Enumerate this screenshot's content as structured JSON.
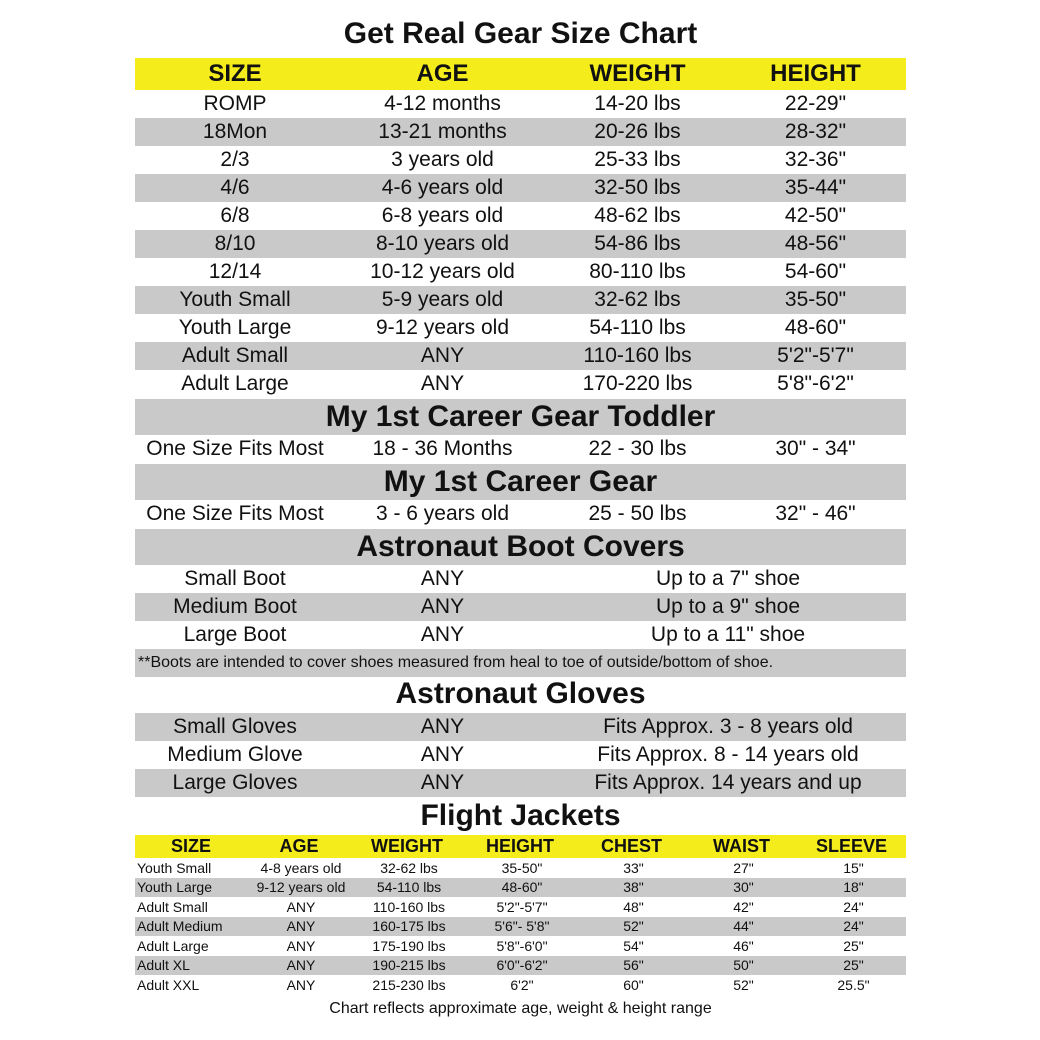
{
  "title": "Get Real Gear Size Chart",
  "colors": {
    "header_yellow": "#f5ec1b",
    "row_gray": "#c9c9c9"
  },
  "main": {
    "headers": [
      "SIZE",
      "AGE",
      "WEIGHT",
      "HEIGHT"
    ],
    "rows": [
      [
        "ROMP",
        "4-12 months",
        "14-20 lbs",
        "22-29\""
      ],
      [
        "18Mon",
        "13-21 months",
        "20-26 lbs",
        "28-32\""
      ],
      [
        "2/3",
        "3 years old",
        "25-33 lbs",
        "32-36\""
      ],
      [
        "4/6",
        "4-6 years old",
        "32-50 lbs",
        "35-44\""
      ],
      [
        "6/8",
        "6-8 years old",
        "48-62 lbs",
        "42-50\""
      ],
      [
        "8/10",
        "8-10 years old",
        "54-86 lbs",
        "48-56\""
      ],
      [
        "12/14",
        "10-12 years old",
        "80-110 lbs",
        "54-60\""
      ],
      [
        "Youth Small",
        "5-9 years old",
        "32-62 lbs",
        "35-50\""
      ],
      [
        "Youth Large",
        "9-12 years old",
        "54-110 lbs",
        "48-60\""
      ],
      [
        "Adult Small",
        "ANY",
        "110-160 lbs",
        "5'2\"-5'7\""
      ],
      [
        "Adult Large",
        "ANY",
        "170-220 lbs",
        "5'8\"-6'2\""
      ]
    ]
  },
  "toddler": {
    "title": "My 1st Career Gear Toddler",
    "row": [
      "One Size Fits Most",
      "18 - 36 Months",
      "22 - 30 lbs",
      "30\" - 34\""
    ]
  },
  "career": {
    "title": "My 1st Career Gear",
    "row": [
      "One Size Fits Most",
      "3 - 6 years old",
      "25 - 50 lbs",
      "32\" - 46\""
    ]
  },
  "boots": {
    "title": "Astronaut  Boot Covers",
    "rows": [
      [
        "Small Boot",
        "ANY",
        "Up to a 7\" shoe"
      ],
      [
        "Medium Boot",
        "ANY",
        "Up to a 9\" shoe"
      ],
      [
        "Large Boot",
        "ANY",
        "Up to a 11\" shoe"
      ]
    ],
    "note": "**Boots are intended to cover shoes measured from heal to toe of outside/bottom of shoe."
  },
  "gloves": {
    "title": "Astronaut Gloves",
    "rows": [
      [
        "Small Gloves",
        "ANY",
        "Fits Approx. 3 - 8 years old"
      ],
      [
        "Medium Glove",
        "ANY",
        "Fits Approx. 8 - 14 years old"
      ],
      [
        "Large Gloves",
        "ANY",
        "Fits Approx. 14 years and up"
      ]
    ]
  },
  "jackets": {
    "title": "Flight Jackets",
    "headers": [
      "SIZE",
      "AGE",
      "WEIGHT",
      "HEIGHT",
      "CHEST",
      "WAIST",
      "SLEEVE"
    ],
    "rows": [
      [
        "Youth Small",
        "4-8 years old",
        "32-62 lbs",
        "35-50\"",
        "33\"",
        "27\"",
        "15\""
      ],
      [
        "Youth Large",
        "9-12 years old",
        "54-110 lbs",
        "48-60\"",
        "38\"",
        "30\"",
        "18\""
      ],
      [
        "Adult Small",
        "ANY",
        "110-160 lbs",
        "5'2\"-5'7\"",
        "48\"",
        "42\"",
        "24\""
      ],
      [
        "Adult Medium",
        "ANY",
        "160-175 lbs",
        "5'6\"- 5'8\"",
        "52\"",
        "44\"",
        "24\""
      ],
      [
        "Adult Large",
        "ANY",
        "175-190 lbs",
        "5'8\"-6'0\"",
        "54\"",
        "46\"",
        "25\""
      ],
      [
        "Adult XL",
        "ANY",
        "190-215 lbs",
        "6'0\"-6'2\"",
        "56\"",
        "50\"",
        "25\""
      ],
      [
        "Adult XXL",
        "ANY",
        "215-230 lbs",
        "6'2\"",
        "60\"",
        "52\"",
        "25.5\""
      ]
    ],
    "footnote": "Chart reflects approximate age, weight & height range"
  }
}
